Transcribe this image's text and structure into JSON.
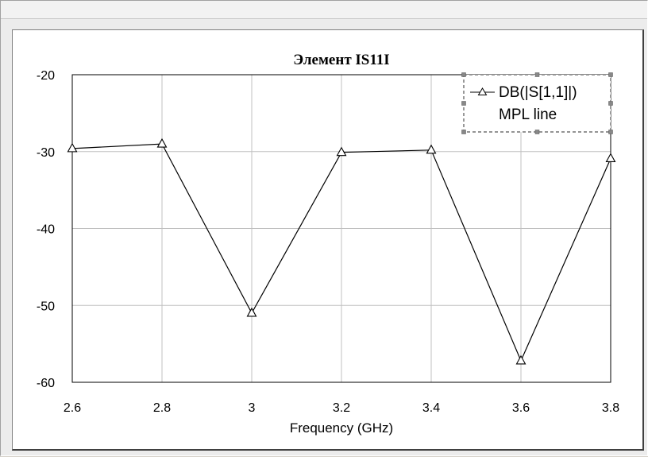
{
  "chart_data": {
    "type": "line",
    "title": "Элемент IS11I",
    "xlabel": "Frequency (GHz)",
    "ylabel": "",
    "xlim": [
      2.6,
      3.8
    ],
    "ylim": [
      -60,
      -20
    ],
    "x_ticks": [
      "2.6",
      "2.8",
      "3",
      "3.2",
      "3.4",
      "3.6",
      "3.8"
    ],
    "y_ticks": [
      "-20",
      "-30",
      "-40",
      "-50",
      "-60"
    ],
    "grid": true,
    "legend_position": "top-right",
    "legend": [
      "DB(|S[1,1]|)",
      "MPL line"
    ],
    "marker": "triangle",
    "series": [
      {
        "name": "DB(|S[1,1]|)",
        "color": "#000000",
        "x": [
          2.6,
          2.8,
          3.0,
          3.2,
          3.4,
          3.6,
          3.8
        ],
        "y": [
          -29.6,
          -29.0,
          -51.0,
          -30.1,
          -29.8,
          -57.2,
          -30.9
        ]
      }
    ]
  }
}
